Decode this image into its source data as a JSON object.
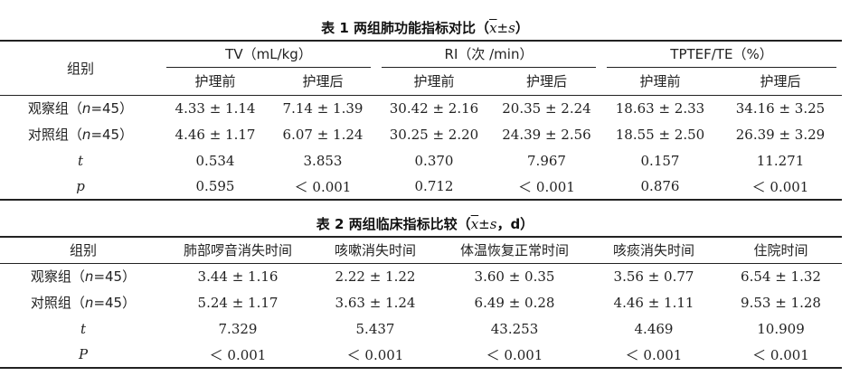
{
  "table1": {
    "caption_prefix": "表 1  两组肺功能指标对比（",
    "caption_xbar": "x",
    "caption_pm": "±",
    "caption_s": "s",
    "caption_suffix": "）",
    "group_header": "组别",
    "col_groups": [
      "TV（mL/kg）",
      "RI（次 /min）",
      "TPTEF/TE（%）"
    ],
    "sub_headers": [
      "护理前",
      "护理后",
      "护理前",
      "护理后",
      "护理前",
      "护理后"
    ],
    "rows": [
      {
        "label": "观察组（",
        "label_n": "n",
        "label_rest": "=45）",
        "cells": [
          "4.33 ± 1.14",
          "7.14 ± 1.39",
          "30.42 ± 2.16",
          "20.35 ± 2.24",
          "18.63 ± 2.33",
          "34.16 ± 3.25"
        ]
      },
      {
        "label": "对照组（",
        "label_n": "n",
        "label_rest": "=45）",
        "cells": [
          "4.46 ± 1.17",
          "6.07 ± 1.24",
          "30.25 ± 2.20",
          "24.39 ± 2.56",
          "18.55 ± 2.50",
          "26.39 ± 3.29"
        ]
      },
      {
        "label": "",
        "label_n": "t",
        "label_rest": "",
        "cells": [
          "0.534",
          "3.853",
          "0.370",
          "7.967",
          "0.157",
          "11.271"
        ]
      },
      {
        "label": "",
        "label_n": "p",
        "label_rest": "",
        "cells": [
          "0.595",
          "＜ 0.001",
          "0.712",
          "＜ 0.001",
          "0.876",
          "＜ 0.001"
        ]
      }
    ]
  },
  "table2": {
    "caption_prefix": "表 2  两组临床指标比较（",
    "caption_xbar": "x",
    "caption_pm": "±",
    "caption_s": "s",
    "caption_suffix": "，d）",
    "headers": [
      "组别",
      "肺部啰音消失时间",
      "咳嗽消失时间",
      "体温恢复正常时间",
      "咳痰消失时间",
      "住院时间"
    ],
    "rows": [
      {
        "label": "观察组（",
        "label_n": "n",
        "label_rest": "=45）",
        "cells": [
          "3.44 ± 1.16",
          "2.22 ± 1.22",
          "3.60 ± 0.35",
          "3.56 ± 0.77",
          "6.54 ± 1.32"
        ]
      },
      {
        "label": "对照组（",
        "label_n": "n",
        "label_rest": "=45）",
        "cells": [
          "5.24 ± 1.17",
          "3.63 ± 1.24",
          "6.49 ± 0.28",
          "4.46 ± 1.11",
          "9.53 ± 1.28"
        ]
      },
      {
        "label": "",
        "label_n": "t",
        "label_rest": "",
        "cells": [
          "7.329",
          "5.437",
          "43.253",
          "4.469",
          "10.909"
        ]
      },
      {
        "label": "",
        "label_n": "P",
        "label_rest": "",
        "cells": [
          "＜ 0.001",
          "＜ 0.001",
          "＜ 0.001",
          "＜ 0.001",
          "＜ 0.001"
        ]
      }
    ]
  }
}
